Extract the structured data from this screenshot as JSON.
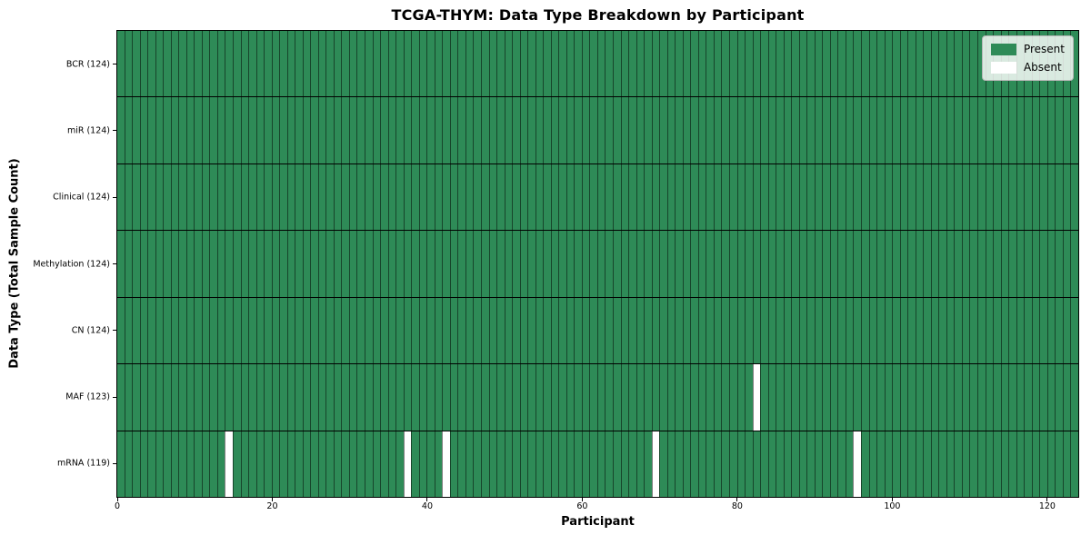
{
  "chart_data": {
    "type": "heatmap",
    "title": "TCGA-THYM: Data Type Breakdown by Participant",
    "xlabel": "Participant",
    "ylabel": "Data Type (Total Sample Count)",
    "n_participants": 124,
    "xlim": [
      0,
      124
    ],
    "x_ticks": [
      0,
      20,
      40,
      60,
      80,
      100,
      120
    ],
    "rows": [
      {
        "label": "BCR (124)",
        "data_type": "BCR",
        "present_count": 124,
        "absent_participants": []
      },
      {
        "label": "miR (124)",
        "data_type": "miR",
        "present_count": 124,
        "absent_participants": []
      },
      {
        "label": "Clinical (124)",
        "data_type": "Clinical",
        "present_count": 124,
        "absent_participants": []
      },
      {
        "label": "Methylation (124)",
        "data_type": "Methylation",
        "present_count": 124,
        "absent_participants": []
      },
      {
        "label": "CN (124)",
        "data_type": "CN",
        "present_count": 124,
        "absent_participants": []
      },
      {
        "label": "MAF (123)",
        "data_type": "MAF",
        "present_count": 123,
        "absent_participants": [
          82
        ]
      },
      {
        "label": "mRNA (119)",
        "data_type": "mRNA",
        "present_count": 119,
        "absent_participants": [
          14,
          37,
          42,
          69,
          95
        ]
      }
    ],
    "legend": {
      "position": "upper right",
      "items": [
        {
          "label": "Present",
          "color": "#2e8b57"
        },
        {
          "label": "Absent",
          "color": "#ffffff"
        }
      ]
    },
    "colors": {
      "present": "#2e8b57",
      "absent": "#ffffff",
      "cell_edge": "rgba(0,0,0,0.5)",
      "frame": "#000000"
    },
    "grid": false
  }
}
